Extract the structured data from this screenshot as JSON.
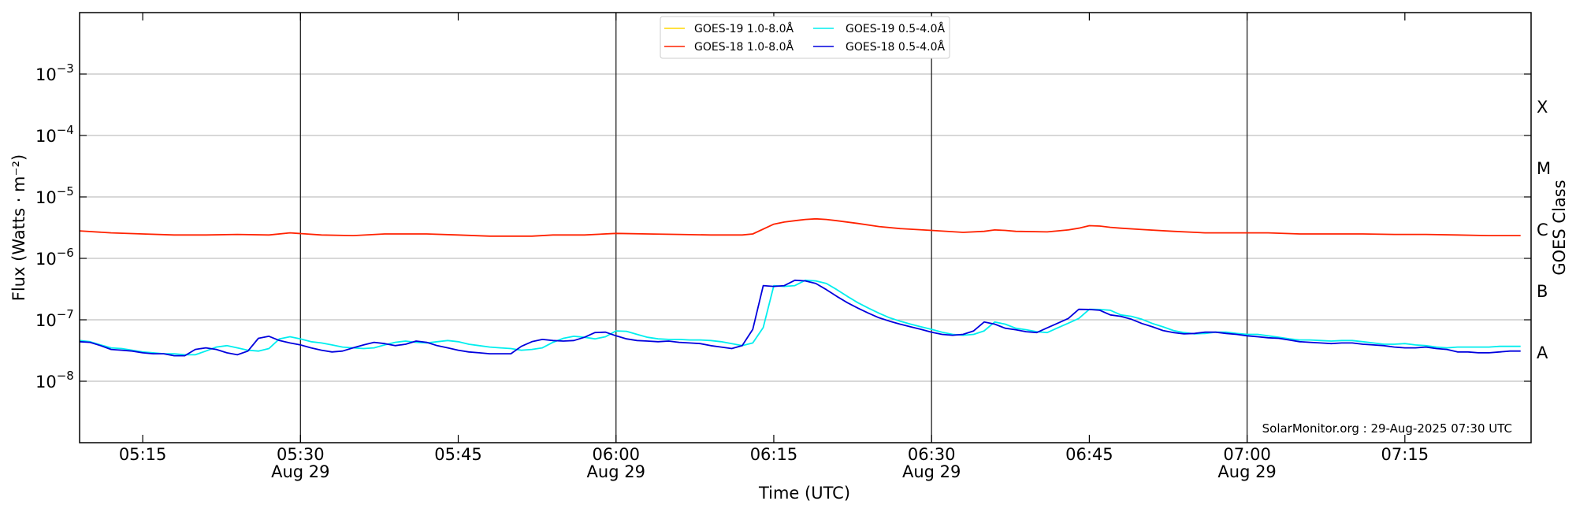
{
  "chart_data": {
    "type": "line",
    "xlabel": "Time (UTC)",
    "ylabel": "Flux (Watts · m⁻²)",
    "right_label": "GOES Class",
    "y_scale": "log",
    "ylim": [
      1e-09,
      0.01
    ],
    "xlim": [
      "05:09",
      "07:27"
    ],
    "grid": "horizontal at each decade",
    "legend_placement": "top-center",
    "y_ticks": [
      {
        "value": 1e-08,
        "base": "10",
        "exp": "−8"
      },
      {
        "value": 1e-07,
        "base": "10",
        "exp": "−7"
      },
      {
        "value": 1e-06,
        "base": "10",
        "exp": "−6"
      },
      {
        "value": 1e-05,
        "base": "10",
        "exp": "−5"
      },
      {
        "value": 0.0001,
        "base": "10",
        "exp": "−4"
      },
      {
        "value": 0.001,
        "base": "10",
        "exp": "−3"
      }
    ],
    "x_ticks": [
      {
        "time": "05:15",
        "label": "05:15",
        "sublabel": ""
      },
      {
        "time": "05:30",
        "label": "05:30",
        "sublabel": "Aug 29"
      },
      {
        "time": "05:45",
        "label": "05:45",
        "sublabel": ""
      },
      {
        "time": "06:00",
        "label": "06:00",
        "sublabel": "Aug 29"
      },
      {
        "time": "06:15",
        "label": "06:15",
        "sublabel": ""
      },
      {
        "time": "06:30",
        "label": "06:30",
        "sublabel": "Aug 29"
      },
      {
        "time": "06:45",
        "label": "06:45",
        "sublabel": ""
      },
      {
        "time": "07:00",
        "label": "07:00",
        "sublabel": "Aug 29"
      },
      {
        "time": "07:15",
        "label": "07:15",
        "sublabel": ""
      }
    ],
    "vertical_lines": [
      "05:30",
      "06:00",
      "06:30",
      "07:00"
    ],
    "goes_classes": [
      {
        "label": "A",
        "value": 3e-08
      },
      {
        "label": "B",
        "value": 3e-07
      },
      {
        "label": "C",
        "value": 3e-06
      },
      {
        "label": "M",
        "value": 3e-05
      },
      {
        "label": "X",
        "value": 0.0003
      }
    ],
    "credit": "SolarMonitor.org : 29-Aug-2025 07:30 UTC",
    "series": [
      {
        "name": "GOES-19 1.0-8.0Å",
        "color": "#ffd700",
        "x": [],
        "y": []
      },
      {
        "name": "GOES-18 1.0-8.0Å",
        "color": "#ff2200",
        "x": [
          "05:09",
          "05:12",
          "05:15",
          "05:18",
          "05:21",
          "05:24",
          "05:27",
          "05:29",
          "05:32",
          "05:35",
          "05:38",
          "05:42",
          "05:45",
          "05:48",
          "05:52",
          "05:54",
          "05:57",
          "06:00",
          "06:03",
          "06:06",
          "06:09",
          "06:12",
          "06:13",
          "06:15",
          "06:16",
          "06:17",
          "06:18",
          "06:19",
          "06:20",
          "06:21",
          "06:23",
          "06:25",
          "06:27",
          "06:30",
          "06:33",
          "06:35",
          "06:36",
          "06:37",
          "06:38",
          "06:41",
          "06:43",
          "06:44",
          "06:45",
          "06:46",
          "06:47",
          "06:48",
          "06:50",
          "06:53",
          "06:56",
          "06:59",
          "07:02",
          "07:05",
          "07:08",
          "07:11",
          "07:14",
          "07:17",
          "07:20",
          "07:23",
          "07:26"
        ],
        "y": [
          2.8e-06,
          2.6e-06,
          2.5e-06,
          2.4e-06,
          2.4e-06,
          2.45e-06,
          2.4e-06,
          2.6e-06,
          2.4e-06,
          2.35e-06,
          2.5e-06,
          2.5e-06,
          2.4e-06,
          2.3e-06,
          2.3e-06,
          2.4e-06,
          2.4e-06,
          2.55e-06,
          2.5e-06,
          2.45e-06,
          2.4e-06,
          2.4e-06,
          2.5e-06,
          3.6e-06,
          3.9e-06,
          4.1e-06,
          4.3e-06,
          4.4e-06,
          4.3e-06,
          4.1e-06,
          3.7e-06,
          3.3e-06,
          3.05e-06,
          2.85e-06,
          2.65e-06,
          2.75e-06,
          2.9e-06,
          2.85e-06,
          2.75e-06,
          2.7e-06,
          2.9e-06,
          3.1e-06,
          3.4e-06,
          3.35e-06,
          3.2e-06,
          3.1e-06,
          2.95e-06,
          2.75e-06,
          2.6e-06,
          2.6e-06,
          2.6e-06,
          2.5e-06,
          2.5e-06,
          2.5e-06,
          2.45e-06,
          2.45e-06,
          2.4e-06,
          2.35e-06,
          2.35e-06
        ]
      },
      {
        "name": "GOES-19 0.5-4.0Å",
        "color": "#00eeee",
        "x": [
          "05:09",
          "05:10",
          "05:11",
          "05:12",
          "05:13",
          "05:14",
          "05:15",
          "05:16",
          "05:17",
          "05:18",
          "05:19",
          "05:20",
          "05:21",
          "05:22",
          "05:23",
          "05:24",
          "05:25",
          "05:26",
          "05:27",
          "05:28",
          "05:29",
          "05:30",
          "05:31",
          "05:32",
          "05:33",
          "05:34",
          "05:35",
          "05:36",
          "05:37",
          "05:38",
          "05:39",
          "05:40",
          "05:41",
          "05:42",
          "05:43",
          "05:44",
          "05:45",
          "05:46",
          "05:47",
          "05:48",
          "05:49",
          "05:50",
          "05:51",
          "05:52",
          "05:53",
          "05:54",
          "05:55",
          "05:56",
          "05:57",
          "05:58",
          "05:59",
          "06:00",
          "06:01",
          "06:02",
          "06:03",
          "06:04",
          "06:05",
          "06:06",
          "06:07",
          "06:08",
          "06:09",
          "06:10",
          "06:11",
          "06:12",
          "06:13",
          "06:14",
          "06:15",
          "06:16",
          "06:17",
          "06:18",
          "06:19",
          "06:20",
          "06:21",
          "06:22",
          "06:23",
          "06:24",
          "06:25",
          "06:26",
          "06:27",
          "06:28",
          "06:29",
          "06:30",
          "06:31",
          "06:32",
          "06:33",
          "06:34",
          "06:35",
          "06:36",
          "06:37",
          "06:38",
          "06:39",
          "06:40",
          "06:41",
          "06:42",
          "06:43",
          "06:44",
          "06:45",
          "06:46",
          "06:47",
          "06:48",
          "06:49",
          "06:50",
          "06:51",
          "06:52",
          "06:53",
          "06:54",
          "06:55",
          "06:56",
          "06:57",
          "06:58",
          "06:59",
          "07:00",
          "07:01",
          "07:02",
          "07:03",
          "07:04",
          "07:05",
          "07:06",
          "07:07",
          "07:08",
          "07:09",
          "07:10",
          "07:11",
          "07:12",
          "07:13",
          "07:14",
          "07:15",
          "07:16",
          "07:17",
          "07:18",
          "07:19",
          "07:20",
          "07:21",
          "07:22",
          "07:23",
          "07:24",
          "07:25",
          "07:26"
        ],
        "y": [
          4.6e-08,
          4.4e-08,
          3.9e-08,
          3.5e-08,
          3.4e-08,
          3.2e-08,
          3e-08,
          2.9e-08,
          2.8e-08,
          2.8e-08,
          2.7e-08,
          2.7e-08,
          3.1e-08,
          3.6e-08,
          3.8e-08,
          3.5e-08,
          3.2e-08,
          3.1e-08,
          3.4e-08,
          4.9e-08,
          5.3e-08,
          4.9e-08,
          4.4e-08,
          4.2e-08,
          3.9e-08,
          3.6e-08,
          3.5e-08,
          3.4e-08,
          3.5e-08,
          3.9e-08,
          4.3e-08,
          4.5e-08,
          4.3e-08,
          4.2e-08,
          4.4e-08,
          4.6e-08,
          4.4e-08,
          4e-08,
          3.8e-08,
          3.6e-08,
          3.5e-08,
          3.4e-08,
          3.2e-08,
          3.3e-08,
          3.5e-08,
          4.3e-08,
          5e-08,
          5.4e-08,
          5.2e-08,
          4.9e-08,
          5.3e-08,
          6.6e-08,
          6.5e-08,
          5.8e-08,
          5.2e-08,
          4.9e-08,
          4.8e-08,
          4.8e-08,
          4.7e-08,
          4.7e-08,
          4.6e-08,
          4.4e-08,
          4.1e-08,
          3.8e-08,
          4.2e-08,
          7.5e-08,
          3.6e-07,
          3.5e-07,
          3.6e-07,
          4.4e-07,
          4.3e-07,
          3.9e-07,
          3.1e-07,
          2.4e-07,
          1.9e-07,
          1.55e-07,
          1.28e-07,
          1.08e-07,
          9.5e-08,
          8.5e-08,
          7.7e-08,
          7e-08,
          6.3e-08,
          5.8e-08,
          5.6e-08,
          5.8e-08,
          6.6e-08,
          9.2e-08,
          8.5e-08,
          7.3e-08,
          6.9e-08,
          6.4e-08,
          6.2e-08,
          7.4e-08,
          8.8e-08,
          1.05e-07,
          1.48e-07,
          1.47e-07,
          1.43e-07,
          1.2e-07,
          1.14e-07,
          1.02e-07,
          8.7e-08,
          7.7e-08,
          6.7e-08,
          6.2e-08,
          5.9e-08,
          6e-08,
          6.3e-08,
          6.3e-08,
          6e-08,
          5.8e-08,
          5.8e-08,
          5.5e-08,
          5.2e-08,
          4.9e-08,
          4.7e-08,
          4.7e-08,
          4.6e-08,
          4.5e-08,
          4.6e-08,
          4.6e-08,
          4.4e-08,
          4.2e-08,
          4e-08,
          4e-08,
          4.1e-08,
          3.9e-08,
          3.8e-08,
          3.6e-08,
          3.5e-08,
          3.6e-08,
          3.6e-08,
          3.6e-08,
          3.6e-08,
          3.7e-08,
          3.7e-08,
          3.7e-08
        ]
      },
      {
        "name": "GOES-18 0.5-4.0Å",
        "color": "#0000dd",
        "x": [
          "05:09",
          "05:10",
          "05:11",
          "05:12",
          "05:13",
          "05:14",
          "05:15",
          "05:16",
          "05:17",
          "05:18",
          "05:19",
          "05:20",
          "05:21",
          "05:22",
          "05:23",
          "05:24",
          "05:25",
          "05:26",
          "05:27",
          "05:28",
          "05:29",
          "05:30",
          "05:31",
          "05:32",
          "05:33",
          "05:34",
          "05:35",
          "05:36",
          "05:37",
          "05:38",
          "05:39",
          "05:40",
          "05:41",
          "05:42",
          "05:43",
          "05:44",
          "05:45",
          "05:46",
          "05:47",
          "05:48",
          "05:49",
          "05:50",
          "05:51",
          "05:52",
          "05:53",
          "05:54",
          "05:55",
          "05:56",
          "05:57",
          "05:58",
          "05:59",
          "06:00",
          "06:01",
          "06:02",
          "06:03",
          "06:04",
          "06:05",
          "06:06",
          "06:07",
          "06:08",
          "06:09",
          "06:10",
          "06:11",
          "06:12",
          "06:13",
          "06:14",
          "06:15",
          "06:16",
          "06:17",
          "06:18",
          "06:19",
          "06:20",
          "06:21",
          "06:22",
          "06:23",
          "06:24",
          "06:25",
          "06:26",
          "06:27",
          "06:28",
          "06:29",
          "06:30",
          "06:31",
          "06:32",
          "06:33",
          "06:34",
          "06:35",
          "06:36",
          "06:37",
          "06:38",
          "06:39",
          "06:40",
          "06:41",
          "06:42",
          "06:43",
          "06:44",
          "06:45",
          "06:46",
          "06:47",
          "06:48",
          "06:49",
          "06:50",
          "06:51",
          "06:52",
          "06:53",
          "06:54",
          "06:55",
          "06:56",
          "06:57",
          "06:58",
          "06:59",
          "07:00",
          "07:01",
          "07:02",
          "07:03",
          "07:04",
          "07:05",
          "07:06",
          "07:07",
          "07:08",
          "07:09",
          "07:10",
          "07:11",
          "07:12",
          "07:13",
          "07:14",
          "07:15",
          "07:16",
          "07:17",
          "07:18",
          "07:19",
          "07:20",
          "07:21",
          "07:22",
          "07:23",
          "07:24",
          "07:25",
          "07:26"
        ],
        "y": [
          4.4e-08,
          4.3e-08,
          3.8e-08,
          3.3e-08,
          3.2e-08,
          3.1e-08,
          2.9e-08,
          2.8e-08,
          2.8e-08,
          2.6e-08,
          2.6e-08,
          3.3e-08,
          3.5e-08,
          3.3e-08,
          2.9e-08,
          2.7e-08,
          3.1e-08,
          5e-08,
          5.4e-08,
          4.6e-08,
          4.2e-08,
          3.9e-08,
          3.5e-08,
          3.2e-08,
          3e-08,
          3.1e-08,
          3.5e-08,
          3.9e-08,
          4.3e-08,
          4.1e-08,
          3.8e-08,
          4e-08,
          4.5e-08,
          4.3e-08,
          3.8e-08,
          3.5e-08,
          3.2e-08,
          3e-08,
          2.9e-08,
          2.8e-08,
          2.8e-08,
          2.8e-08,
          3.7e-08,
          4.4e-08,
          4.8e-08,
          4.6e-08,
          4.5e-08,
          4.6e-08,
          5.2e-08,
          6.2e-08,
          6.3e-08,
          5.5e-08,
          4.9e-08,
          4.6e-08,
          4.5e-08,
          4.4e-08,
          4.5e-08,
          4.3e-08,
          4.2e-08,
          4.1e-08,
          3.8e-08,
          3.6e-08,
          3.4e-08,
          3.8e-08,
          7e-08,
          3.6e-07,
          3.5e-07,
          3.6e-07,
          4.4e-07,
          4.3e-07,
          3.9e-07,
          3.1e-07,
          2.4e-07,
          1.9e-07,
          1.55e-07,
          1.28e-07,
          1.08e-07,
          9.5e-08,
          8.5e-08,
          7.7e-08,
          7e-08,
          6.3e-08,
          5.8e-08,
          5.6e-08,
          5.8e-08,
          6.6e-08,
          9.2e-08,
          8.5e-08,
          7.3e-08,
          6.9e-08,
          6.4e-08,
          6.2e-08,
          7.4e-08,
          8.8e-08,
          1.05e-07,
          1.48e-07,
          1.47e-07,
          1.43e-07,
          1.2e-07,
          1.14e-07,
          1.02e-07,
          8.7e-08,
          7.7e-08,
          6.7e-08,
          6.2e-08,
          5.9e-08,
          6e-08,
          6.3e-08,
          6.3e-08,
          6e-08,
          5.8e-08,
          5.5e-08,
          5.3e-08,
          5.1e-08,
          5e-08,
          4.7e-08,
          4.4e-08,
          4.3e-08,
          4.2e-08,
          4.1e-08,
          4.2e-08,
          4.2e-08,
          4e-08,
          3.9e-08,
          3.8e-08,
          3.6e-08,
          3.5e-08,
          3.5e-08,
          3.6e-08,
          3.4e-08,
          3.3e-08,
          3e-08,
          3e-08,
          2.9e-08,
          2.9e-08,
          3e-08,
          3.1e-08,
          3.1e-08
        ]
      }
    ]
  }
}
